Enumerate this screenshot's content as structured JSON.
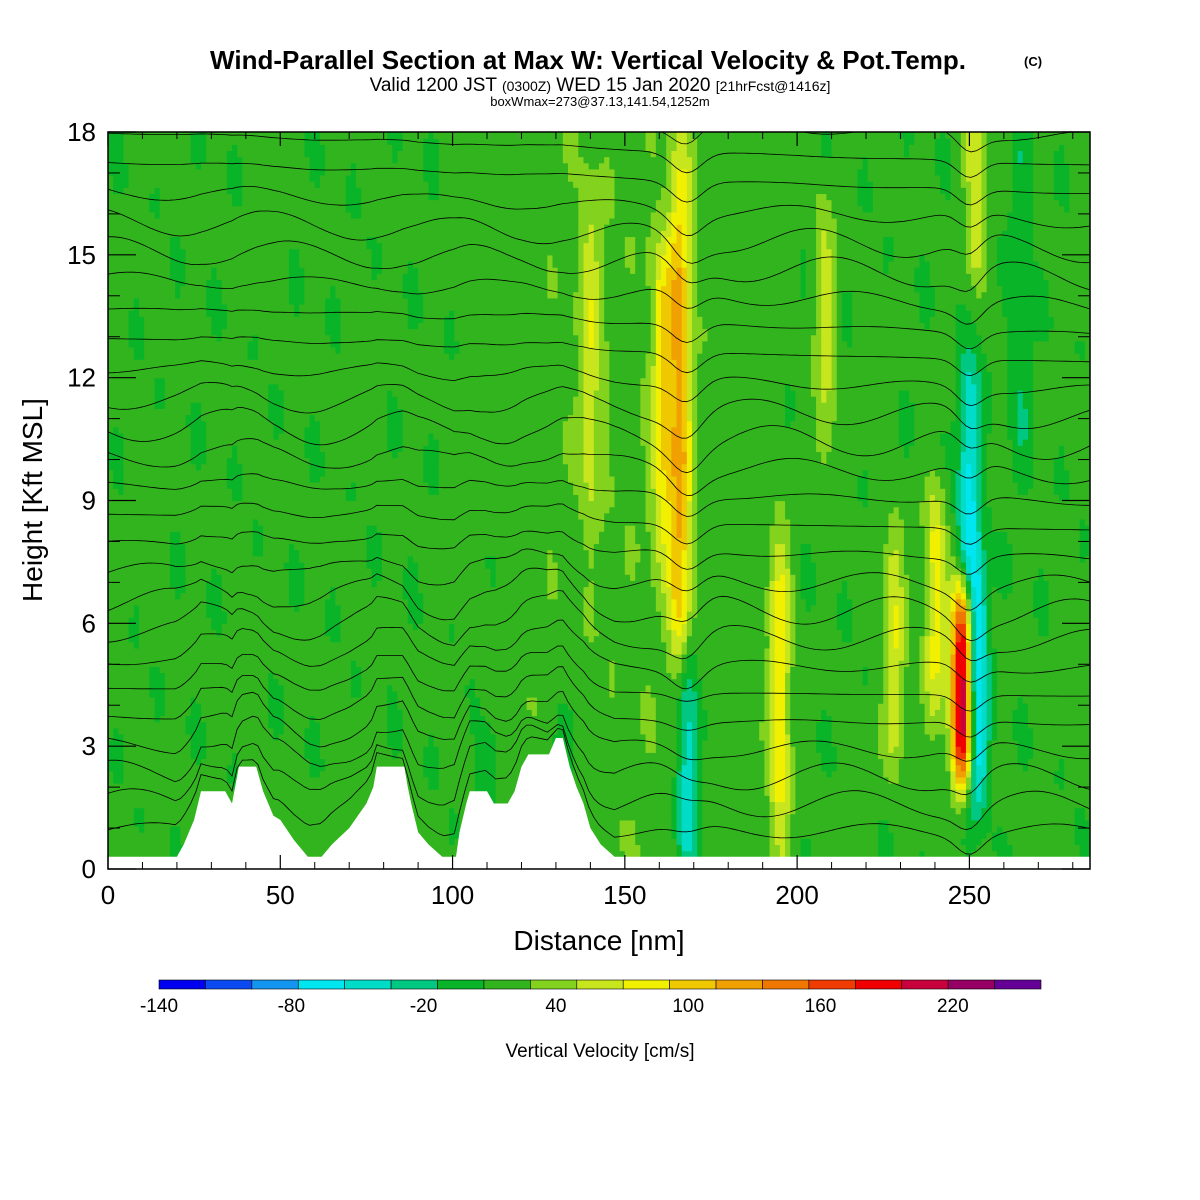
{
  "chart_data": {
    "type": "heatmap",
    "title": "Wind-Parallel Section at Max W: Vertical Velocity & Pot.Temp.",
    "title_mark": "(C)",
    "subtitle_parts": [
      "Valid 1200 JST",
      "(0300Z)",
      "WED 15 Jan 2020",
      "[21hrFcst@1416z]"
    ],
    "subtitle2": "boxWmax=273@37.13,141.54,1252m",
    "xlabel": "Distance [nm]",
    "ylabel": "Height [Kft MSL]",
    "xlim": [
      0,
      285
    ],
    "ylim": [
      0,
      18
    ],
    "x_ticks": [
      0,
      50,
      100,
      150,
      200,
      250
    ],
    "x_tick_labels": [
      "0",
      "50",
      "100",
      "150",
      "200",
      "250"
    ],
    "y_ticks": [
      0,
      3,
      6,
      9,
      12,
      15,
      18
    ],
    "y_tick_labels": [
      "0",
      "3",
      "6",
      "9",
      "12",
      "15",
      "18"
    ],
    "colorbar": {
      "label": "Vertical Velocity [cm/s]",
      "min": -140,
      "max": 260,
      "step": 20,
      "tick_values": [
        -140,
        -80,
        -20,
        40,
        100,
        160,
        220
      ],
      "tick_labels": [
        "-140",
        "-80",
        "-20",
        "40",
        "100",
        "160",
        "220"
      ],
      "colors": [
        "#0000f0",
        "#0a4af0",
        "#1496f0",
        "#00e6f0",
        "#00dcc8",
        "#00c882",
        "#0ab428",
        "#32b41e",
        "#82d21e",
        "#c8e61e",
        "#f0f000",
        "#f0c800",
        "#f0a000",
        "#f07800",
        "#f03c00",
        "#f00000",
        "#c8003c",
        "#960064",
        "#640096"
      ]
    },
    "w_features": [
      {
        "x": 166,
        "z0": 5,
        "z1": 17,
        "w": 90
      },
      {
        "x": 161,
        "z0": 8,
        "z1": 15,
        "w": 60
      },
      {
        "x": 168,
        "z0": 0.5,
        "z1": 5,
        "w": -70
      },
      {
        "x": 195,
        "z0": 0.5,
        "z1": 8,
        "w": 65
      },
      {
        "x": 248,
        "z0": 2.5,
        "z1": 6.5,
        "w": 200
      },
      {
        "x": 252,
        "z0": 2,
        "z1": 7,
        "w": -100
      },
      {
        "x": 250,
        "z0": 7,
        "z1": 12,
        "w": -70
      },
      {
        "x": 252,
        "z0": 15,
        "z1": 18,
        "w": 55
      },
      {
        "x": 240,
        "z0": 4,
        "z1": 9,
        "w": 60
      },
      {
        "x": 228,
        "z0": 3,
        "z1": 8,
        "w": 55
      },
      {
        "x": 208,
        "z0": 10,
        "z1": 16,
        "w": 40
      },
      {
        "x": 140,
        "z0": 9,
        "z1": 16,
        "w": 40
      },
      {
        "x": 110,
        "z0": 1,
        "z1": 3,
        "w": -25
      },
      {
        "x": 133,
        "z0": 2.5,
        "z1": 3.5,
        "w": -35
      },
      {
        "x": 265,
        "z0": 10,
        "z1": 18,
        "w": -25
      }
    ],
    "terrain": [
      [
        0,
        0.3
      ],
      [
        20,
        0.3
      ],
      [
        22,
        0.6
      ],
      [
        25,
        1.2
      ],
      [
        27,
        1.9
      ],
      [
        34,
        1.9
      ],
      [
        36,
        1.6
      ],
      [
        38,
        2.5
      ],
      [
        43,
        2.5
      ],
      [
        45,
        1.9
      ],
      [
        48,
        1.3
      ],
      [
        50,
        1.2
      ],
      [
        54,
        0.7
      ],
      [
        58,
        0.3
      ],
      [
        62,
        0.3
      ],
      [
        65,
        0.6
      ],
      [
        70,
        1.0
      ],
      [
        75,
        1.6
      ],
      [
        77,
        2.0
      ],
      [
        78,
        2.5
      ],
      [
        86,
        2.5
      ],
      [
        87,
        2.0
      ],
      [
        88,
        1.6
      ],
      [
        90,
        0.9
      ],
      [
        93,
        0.6
      ],
      [
        97,
        0.3
      ],
      [
        101,
        0.3
      ],
      [
        102,
        0.9
      ],
      [
        104,
        1.6
      ],
      [
        105,
        1.9
      ],
      [
        110,
        1.9
      ],
      [
        112,
        1.6
      ],
      [
        116,
        1.6
      ],
      [
        118,
        1.9
      ],
      [
        120,
        2.5
      ],
      [
        122,
        2.8
      ],
      [
        128,
        2.8
      ],
      [
        130,
        3.2
      ],
      [
        132,
        3.2
      ],
      [
        134,
        2.5
      ],
      [
        136,
        2.0
      ],
      [
        138,
        1.6
      ],
      [
        140,
        1.0
      ],
      [
        143,
        0.6
      ],
      [
        147,
        0.3
      ],
      [
        151,
        0.3
      ],
      [
        155,
        0.3
      ],
      [
        285,
        0.3
      ]
    ]
  }
}
